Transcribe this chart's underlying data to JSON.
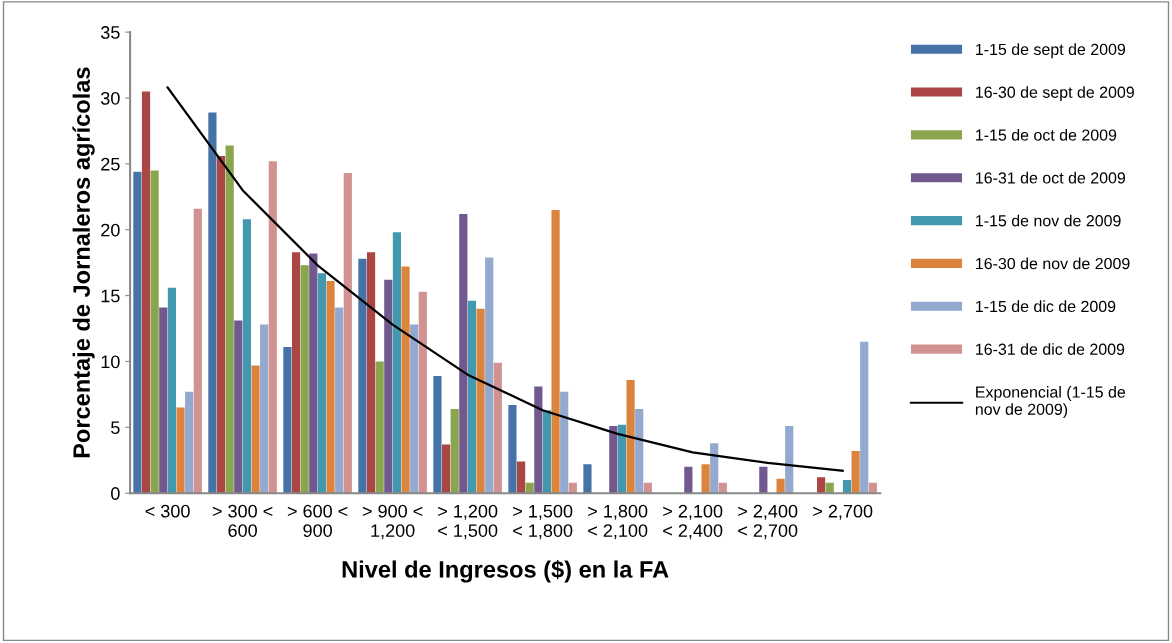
{
  "chart_data": {
    "type": "bar",
    "xlabel": "Nivel de Ingresos ($) en la FA",
    "ylabel": "Porcentaje de Jornaleros agrícolas",
    "categories": [
      "< 300",
      "> 300 <\n600",
      "> 600 <\n900",
      "> 900 <\n1,200",
      "> 1,200\n< 1,500",
      "> 1,500\n< 1,800",
      "> 1,800\n< 2,100",
      "> 2,100\n< 2,400",
      "> 2,400\n< 2,700",
      "> 2,700"
    ],
    "ylim": [
      0,
      35
    ],
    "yticks": [
      0,
      5,
      10,
      15,
      20,
      25,
      30,
      35
    ],
    "grid": false,
    "legend": "right",
    "series": [
      {
        "name": "1-15 de sept de 2009",
        "color": "#4572a7",
        "values": [
          24.4,
          28.9,
          11.1,
          17.8,
          8.9,
          6.7,
          2.2,
          0,
          0,
          0
        ]
      },
      {
        "name": "16-30 de sept de 2009",
        "color": "#aa4643",
        "values": [
          30.5,
          25.6,
          18.3,
          18.3,
          3.7,
          2.4,
          0,
          0,
          0,
          1.2
        ]
      },
      {
        "name": "1-15 de oct de 2009",
        "color": "#89a54e",
        "values": [
          24.5,
          26.4,
          17.3,
          10.0,
          6.4,
          0.8,
          0,
          0,
          0,
          0.8
        ]
      },
      {
        "name": "16-31 de oct de 2009",
        "color": "#71588f",
        "values": [
          14.1,
          13.1,
          18.2,
          16.2,
          21.2,
          8.1,
          5.1,
          2.0,
          2.0,
          0
        ]
      },
      {
        "name": "1-15 de nov de 2009",
        "color": "#4198af",
        "values": [
          15.6,
          20.8,
          16.7,
          19.8,
          14.6,
          6.3,
          5.2,
          0,
          0,
          1.0
        ]
      },
      {
        "name": "16-30 de nov de 2009",
        "color": "#db843d",
        "values": [
          6.5,
          9.7,
          16.1,
          17.2,
          14.0,
          21.5,
          8.6,
          2.2,
          1.1,
          3.2
        ]
      },
      {
        "name": "1-15 de dic de 2009",
        "color": "#93a9cf",
        "values": [
          7.7,
          12.8,
          14.1,
          12.8,
          17.9,
          7.7,
          6.4,
          3.8,
          5.1,
          11.5
        ]
      },
      {
        "name": "16-31 de dic de 2009",
        "color": "#d19392",
        "values": [
          21.6,
          25.2,
          24.3,
          15.3,
          9.9,
          0.8,
          0.8,
          0.8,
          0,
          0.8
        ]
      },
      {
        "name": "Exponencial (1-15 de\nnov de 2009)",
        "type": "line",
        "color": "#000000",
        "values": [
          30.8,
          23.0,
          17.3,
          12.8,
          9.0,
          6.3,
          4.5,
          3.1,
          2.3,
          1.7
        ]
      }
    ]
  }
}
